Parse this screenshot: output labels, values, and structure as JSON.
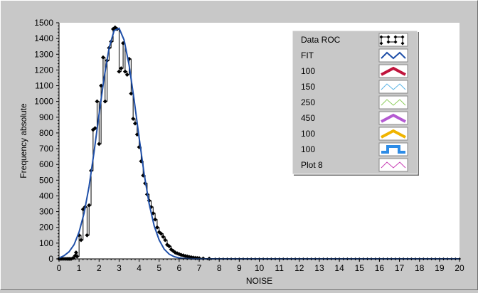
{
  "chart_data": {
    "type": "line",
    "xlabel": "NOISE",
    "ylabel": "Frequency absolute",
    "xlim": [
      0,
      20
    ],
    "ylim": [
      0,
      1500
    ],
    "x_ticks": [
      0,
      1,
      2,
      3,
      4,
      5,
      6,
      7,
      8,
      9,
      10,
      11,
      12,
      13,
      14,
      15,
      16,
      17,
      18,
      19,
      20
    ],
    "y_ticks": [
      0,
      100,
      200,
      300,
      400,
      500,
      600,
      700,
      800,
      900,
      1000,
      1100,
      1200,
      1300,
      1400,
      1500
    ],
    "grid": false,
    "legend_position": "top-right",
    "colors": {
      "background": "#c8c8c8",
      "plot_area": "#ffffff",
      "data_roc": "#000000",
      "fit": "#1f4fa8"
    },
    "legend": [
      {
        "label": "Data ROC",
        "color": "#000000",
        "style": "markers"
      },
      {
        "label": "FIT",
        "color": "#1f4fa8",
        "style": "line"
      },
      {
        "label": "100",
        "color": "#c0143c",
        "style": "thick"
      },
      {
        "label": "150",
        "color": "#5ab4e6",
        "style": "thin"
      },
      {
        "label": "250",
        "color": "#8ccc5a",
        "style": "thin"
      },
      {
        "label": "450",
        "color": "#b45ad2",
        "style": "thick"
      },
      {
        "label": "100",
        "color": "#f0b400",
        "style": "thick"
      },
      {
        "label": "100",
        "color": "#2d8ce6",
        "style": "square"
      },
      {
        "label": "Plot 8",
        "color": "#c83cb4",
        "style": "thin"
      }
    ],
    "series": [
      {
        "name": "Data ROC",
        "x": [
          0,
          0.1,
          0.2,
          0.3,
          0.4,
          0.5,
          0.6,
          0.7,
          0.8,
          0.85,
          0.9,
          1.0,
          1.1,
          1.2,
          1.3,
          1.4,
          1.5,
          1.6,
          1.7,
          1.8,
          1.9,
          2.0,
          2.1,
          2.2,
          2.3,
          2.4,
          2.5,
          2.6,
          2.7,
          2.8,
          2.9,
          3.0,
          3.1,
          3.2,
          3.3,
          3.4,
          3.5,
          3.6,
          3.7,
          3.8,
          3.9,
          4.0,
          4.1,
          4.2,
          4.3,
          4.4,
          4.5,
          4.6,
          4.7,
          4.8,
          4.9,
          5.0,
          5.1,
          5.2,
          5.3,
          5.4,
          5.5,
          5.6,
          5.7,
          5.8,
          5.9,
          6.0,
          6.1,
          6.2,
          6.3,
          6.4,
          6.5,
          6.6,
          6.7,
          6.8,
          6.9,
          7.0,
          7.2,
          7.5,
          8,
          9,
          10,
          11,
          12,
          13,
          14,
          15,
          16,
          17,
          18,
          19,
          20
        ],
        "y": [
          0,
          0,
          0,
          0,
          0,
          0,
          0,
          5,
          20,
          40,
          15,
          150,
          120,
          315,
          330,
          150,
          340,
          560,
          820,
          830,
          1000,
          730,
          1100,
          1280,
          1000,
          1260,
          1340,
          1380,
          1460,
          1470,
          1460,
          1190,
          1210,
          1370,
          1190,
          1170,
          1270,
          1050,
          890,
          860,
          790,
          710,
          620,
          530,
          480,
          410,
          370,
          330,
          290,
          250,
          200,
          170,
          160,
          140,
          120,
          90,
          80,
          60,
          50,
          40,
          35,
          30,
          25,
          22,
          18,
          15,
          12,
          10,
          8,
          6,
          5,
          4,
          2,
          1,
          0,
          0,
          0,
          0,
          0,
          0,
          0,
          0,
          0,
          0,
          0,
          0,
          0
        ]
      },
      {
        "name": "FIT",
        "x": [
          0,
          0.25,
          0.5,
          0.75,
          1.0,
          1.25,
          1.5,
          1.75,
          2.0,
          2.25,
          2.5,
          2.75,
          3.0,
          3.25,
          3.5,
          3.75,
          4.0,
          4.25,
          4.5,
          4.75,
          5.0,
          5.25,
          5.5,
          5.75,
          6.0,
          6.25,
          6.5,
          6.75,
          7.0,
          7.5,
          8,
          10,
          20
        ],
        "y": [
          5,
          20,
          45,
          90,
          170,
          290,
          460,
          680,
          920,
          1150,
          1340,
          1450,
          1465,
          1390,
          1230,
          1010,
          770,
          540,
          350,
          210,
          120,
          62,
          30,
          14,
          6,
          2,
          1,
          0,
          0,
          0,
          0,
          0,
          0
        ]
      }
    ]
  }
}
